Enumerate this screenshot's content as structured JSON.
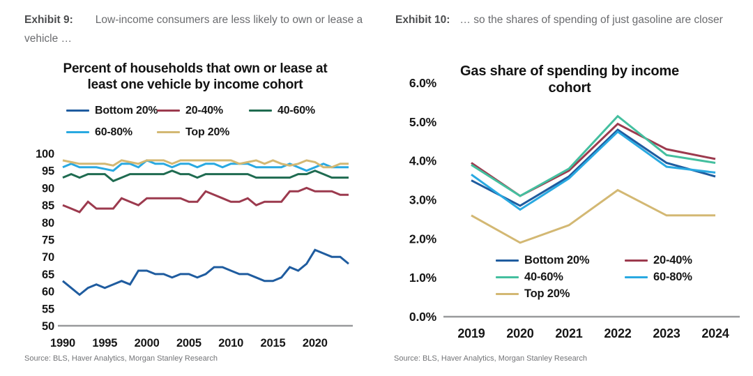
{
  "panels": [
    {
      "exhibit_label": "Exhibit 9:",
      "exhibit_caption": "Low-income consumers are less likely to own or lease a vehicle …",
      "source": "Source: BLS, Haver Analytics, Morgan Stanley Research"
    },
    {
      "exhibit_label": "Exhibit 10:",
      "exhibit_caption": "… so the shares of spending of just gasoline are closer",
      "source": "Source: BLS, Haver Analytics, Morgan Stanley Research"
    }
  ],
  "chart_data": [
    {
      "type": "line",
      "title": "Percent of households that own or lease at least one vehicle by income cohort",
      "xlabel": "",
      "ylabel": "",
      "ylim": [
        50,
        100
      ],
      "grid": false,
      "legend_position": "top",
      "axis_line_color": "#98999b",
      "x": [
        1990,
        1991,
        1992,
        1993,
        1994,
        1995,
        1996,
        1997,
        1998,
        1999,
        2000,
        2001,
        2002,
        2003,
        2004,
        2005,
        2006,
        2007,
        2008,
        2009,
        2010,
        2011,
        2012,
        2013,
        2014,
        2015,
        2016,
        2017,
        2018,
        2019,
        2020,
        2021,
        2022,
        2023,
        2024
      ],
      "yticks": [
        {
          "value": 50,
          "label": "50"
        },
        {
          "value": 55,
          "label": "55"
        },
        {
          "value": 60,
          "label": "60"
        },
        {
          "value": 65,
          "label": "65"
        },
        {
          "value": 70,
          "label": "70"
        },
        {
          "value": 75,
          "label": "75"
        },
        {
          "value": 80,
          "label": "80"
        },
        {
          "value": 85,
          "label": "85"
        },
        {
          "value": 90,
          "label": "90"
        },
        {
          "value": 95,
          "label": "95"
        },
        {
          "value": 100,
          "label": "100"
        }
      ],
      "xticks": [
        {
          "value": 1990,
          "label": "1990"
        },
        {
          "value": 1995,
          "label": "1995"
        },
        {
          "value": 2000,
          "label": "2000"
        },
        {
          "value": 2005,
          "label": "2005"
        },
        {
          "value": 2010,
          "label": "2010"
        },
        {
          "value": 2015,
          "label": "2015"
        },
        {
          "value": 2020,
          "label": "2020"
        }
      ],
      "series": [
        {
          "name": "Bottom 20%",
          "color": "#1f5c9f",
          "values": [
            63,
            61,
            59,
            61,
            62,
            61,
            62,
            63,
            62,
            66,
            66,
            65,
            65,
            64,
            65,
            65,
            64,
            65,
            67,
            67,
            66,
            65,
            65,
            64,
            63,
            63,
            64,
            67,
            66,
            68,
            72,
            71,
            70,
            70,
            68
          ]
        },
        {
          "name": "20-40%",
          "color": "#9c3a4e",
          "values": [
            85,
            84,
            83,
            86,
            84,
            84,
            84,
            87,
            86,
            85,
            87,
            87,
            87,
            87,
            87,
            86,
            86,
            89,
            88,
            87,
            86,
            86,
            87,
            85,
            86,
            86,
            86,
            89,
            89,
            90,
            89,
            89,
            89,
            88,
            88
          ]
        },
        {
          "name": "40-60%",
          "color": "#1f6b50",
          "values": [
            93,
            94,
            93,
            94,
            94,
            94,
            92,
            93,
            94,
            94,
            94,
            94,
            94,
            95,
            94,
            94,
            93,
            94,
            94,
            94,
            94,
            94,
            94,
            93,
            93,
            93,
            93,
            93,
            94,
            94,
            95,
            94,
            93,
            93,
            93
          ]
        },
        {
          "name": "60-80%",
          "color": "#29a9e1",
          "values": [
            96,
            97,
            96,
            96,
            96,
            95.5,
            95,
            97,
            97,
            96,
            98,
            97,
            97,
            96,
            97,
            97,
            96,
            97,
            97,
            96,
            97,
            97,
            97,
            96,
            96,
            96,
            96,
            97,
            96,
            95,
            96,
            97,
            96,
            96,
            96
          ]
        },
        {
          "name": "Top 20%",
          "color": "#d3b873",
          "values": [
            98,
            97.5,
            97,
            97,
            97,
            97,
            96.5,
            98,
            97.5,
            97,
            98,
            98,
            98,
            97,
            98,
            98,
            98,
            98,
            98,
            98,
            98,
            97,
            97.5,
            98,
            97,
            98,
            97,
            96.5,
            97,
            98,
            97.5,
            96,
            96,
            97,
            97
          ]
        }
      ]
    },
    {
      "type": "line",
      "title": "Gas share of spending by income cohort",
      "xlabel": "",
      "ylabel": "",
      "ylim": [
        0,
        6
      ],
      "grid": false,
      "legend_position": "bottom-inside",
      "axis_line_color": "#98999b",
      "x": [
        2019,
        2020,
        2021,
        2022,
        2023,
        2024
      ],
      "yticks": [
        {
          "value": 0,
          "label": "0.0%"
        },
        {
          "value": 1,
          "label": "1.0%"
        },
        {
          "value": 2,
          "label": "2.0%"
        },
        {
          "value": 3,
          "label": "3.0%"
        },
        {
          "value": 4,
          "label": "4.0%"
        },
        {
          "value": 5,
          "label": "5.0%"
        },
        {
          "value": 6,
          "label": "6.0%"
        }
      ],
      "xticks": [
        {
          "value": 2019,
          "label": "2019"
        },
        {
          "value": 2020,
          "label": "2020"
        },
        {
          "value": 2021,
          "label": "2021"
        },
        {
          "value": 2022,
          "label": "2022"
        },
        {
          "value": 2023,
          "label": "2023"
        },
        {
          "value": 2024,
          "label": "2024"
        }
      ],
      "series": [
        {
          "name": "Bottom 20%",
          "color": "#1f5c9f",
          "values": [
            3.5,
            2.85,
            3.6,
            4.8,
            3.95,
            3.6
          ]
        },
        {
          "name": "20-40%",
          "color": "#9c3a4e",
          "values": [
            3.95,
            3.1,
            3.75,
            4.95,
            4.3,
            4.05
          ]
        },
        {
          "name": "40-60%",
          "color": "#44bf9f",
          "values": [
            3.9,
            3.1,
            3.8,
            5.15,
            4.15,
            3.95
          ]
        },
        {
          "name": "60-80%",
          "color": "#29a9e1",
          "values": [
            3.65,
            2.75,
            3.55,
            4.75,
            3.85,
            3.7
          ]
        },
        {
          "name": "Top 20%",
          "color": "#d3b873",
          "values": [
            2.6,
            1.9,
            2.35,
            3.25,
            2.6,
            2.6
          ]
        }
      ]
    }
  ]
}
